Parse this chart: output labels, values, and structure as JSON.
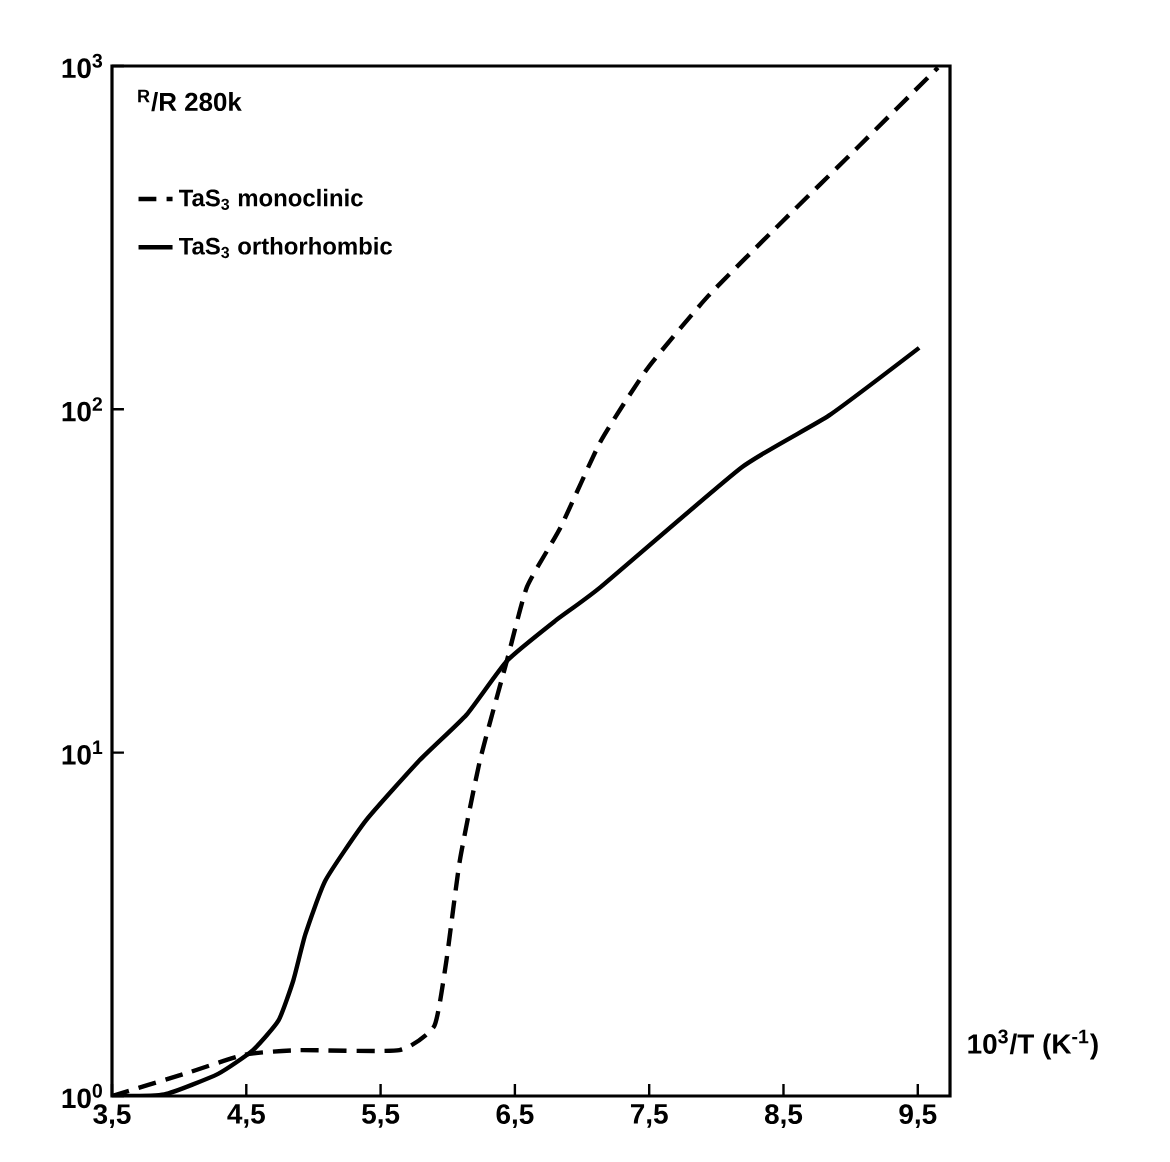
{
  "chart_data": {
    "type": "line",
    "ylabel": "$^{R}$/R 280k",
    "xlabel": "10$^{3}$/T (K$^{-1}$)",
    "log": "y",
    "xlim": [
      3.5,
      9.74
    ],
    "ylim": [
      1,
      1000
    ],
    "xticks": [
      {
        "value": 3.5,
        "label": "3,5"
      },
      {
        "value": 4.5,
        "label": "4,5"
      },
      {
        "value": 5.5,
        "label": "5,5"
      },
      {
        "value": 6.5,
        "label": "6,5"
      },
      {
        "value": 7.5,
        "label": "7,5"
      },
      {
        "value": 8.5,
        "label": "8,5"
      },
      {
        "value": 9.5,
        "label": "9,5"
      }
    ],
    "yticks": [
      {
        "value": 1,
        "label": "10$^{0}$"
      },
      {
        "value": 10,
        "label": "10$^{1}$"
      },
      {
        "value": 100,
        "label": "10$^{2}$"
      },
      {
        "value": 1000,
        "label": "10$^{3}$"
      }
    ],
    "legend": "top left",
    "marker": "none",
    "series": [
      {
        "name": "TaS$_{3}$ monoclinic",
        "color": "#000000",
        "line_style": "dashed",
        "x": [
          3.5,
          4.04,
          4.49,
          4.89,
          5.64,
          5.9,
          5.99,
          6.09,
          6.24,
          6.44,
          6.59,
          6.84,
          7.14,
          7.49,
          7.94,
          8.49,
          9.05,
          9.65
        ],
        "values": [
          1,
          1.16,
          1.32,
          1.36,
          1.36,
          1.6,
          2.48,
          4.85,
          9.5,
          18.5,
          30.4,
          45.3,
          80.9,
          132,
          214,
          352,
          578,
          989
        ]
      },
      {
        "name": "TaS$_{3}$ orthorhombic",
        "color": "#000000",
        "line_style": "solid",
        "x": [
          3.5,
          3.89,
          4.29,
          4.55,
          4.74,
          4.85,
          4.94,
          5.09,
          5.39,
          5.79,
          6.14,
          6.44,
          6.8,
          7.14,
          8.19,
          8.84,
          9.51
        ],
        "values": [
          1,
          1.01,
          1.16,
          1.36,
          1.66,
          2.17,
          2.96,
          4.25,
          6.34,
          9.5,
          12.9,
          18.5,
          24.2,
          30.4,
          67.8,
          96,
          151
        ]
      }
    ]
  }
}
